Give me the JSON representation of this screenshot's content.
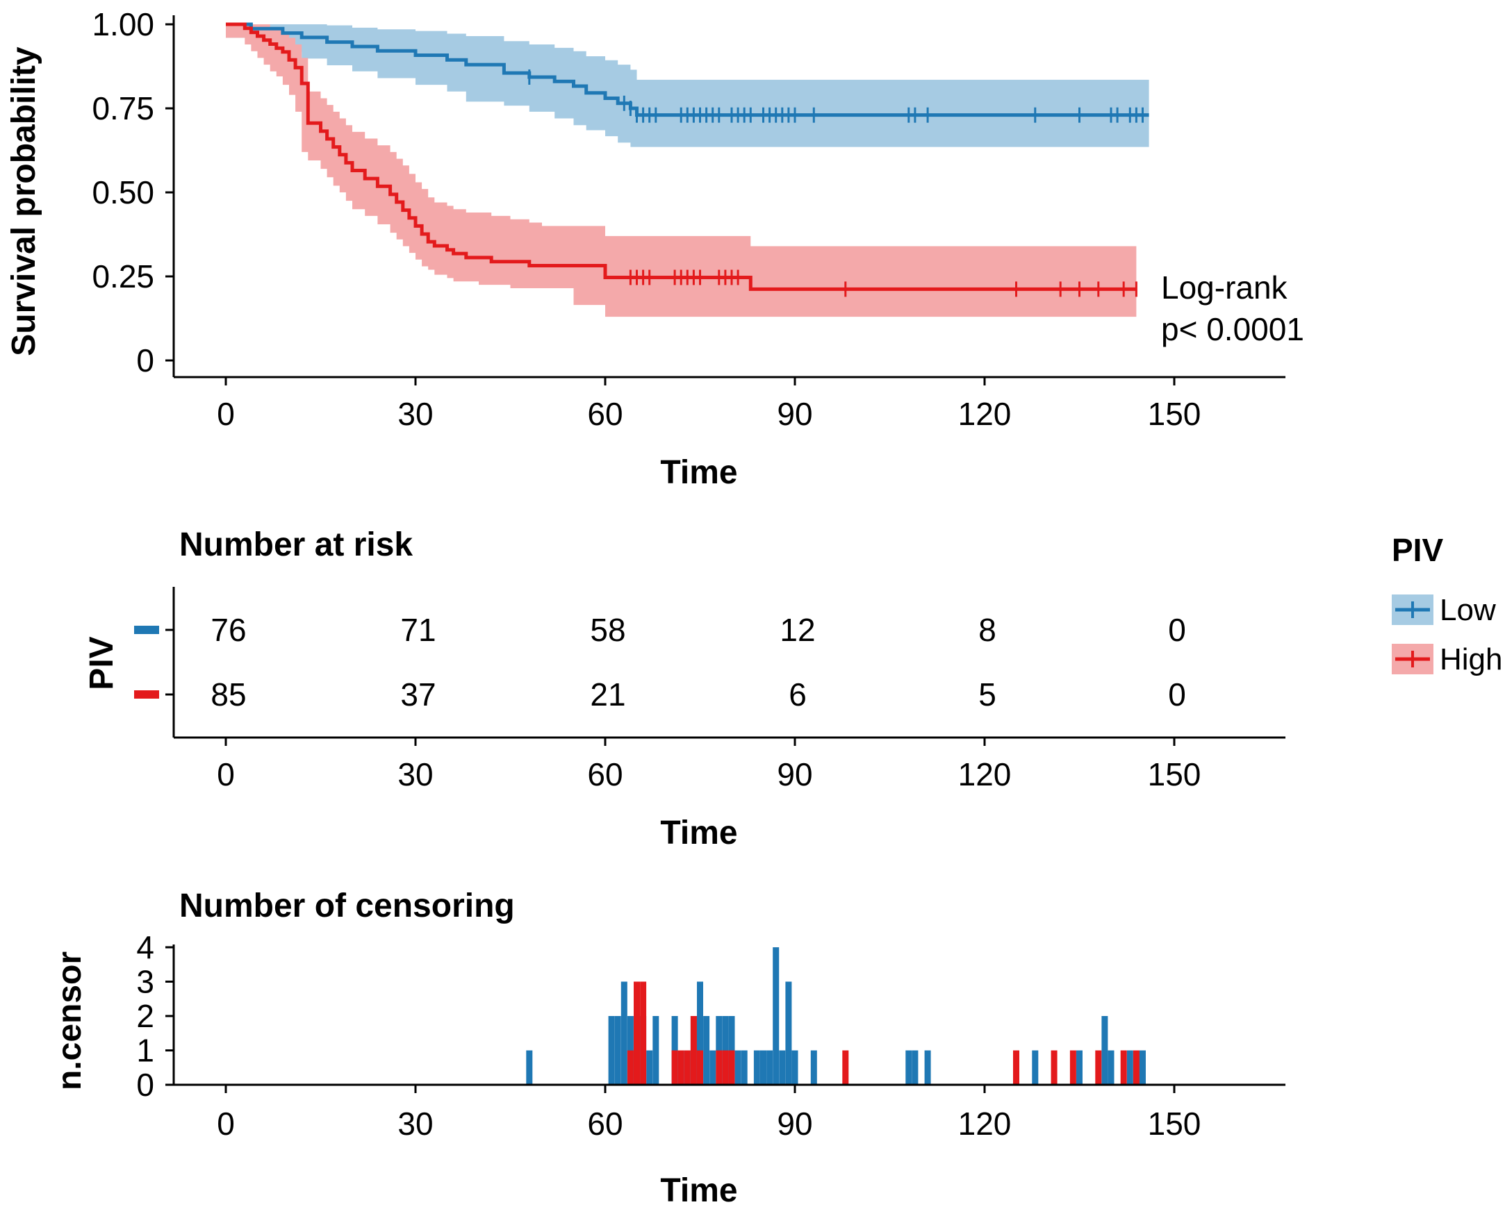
{
  "colors": {
    "low": "#1f78b4",
    "high": "#e31a1c",
    "low_band": "#a6cbe3",
    "high_band": "#f4a9aa"
  },
  "legend": {
    "title": "PIV",
    "items": [
      {
        "label": "Low",
        "color": "#1f78b4"
      },
      {
        "label": "High",
        "color": "#e31a1c"
      }
    ]
  },
  "chart_data": [
    {
      "type": "line",
      "subtype": "kaplan-meier",
      "title": "",
      "xlabel": "Time",
      "ylabel": "Survival probability",
      "xlim": [
        -8,
        167
      ],
      "ylim": [
        -0.05,
        1.05
      ],
      "x_ticks": [
        0,
        30,
        60,
        90,
        120,
        150
      ],
      "x_tick_labels": [
        "0",
        "30",
        "60",
        "90",
        "120",
        "150"
      ],
      "y_ticks": [
        0,
        0.25,
        0.5,
        0.75,
        1.0
      ],
      "y_tick_labels": [
        "0",
        "0.25",
        "0.50",
        "0.75",
        "1.00"
      ],
      "annotation": [
        "Log-rank",
        "p< 0.0001"
      ],
      "series": [
        {
          "name": "Low",
          "color": "#1f78b4",
          "x": [
            0,
            4,
            9,
            12,
            16,
            20,
            24,
            30,
            35,
            38,
            44,
            48,
            52,
            55,
            57,
            60,
            62,
            64,
            65,
            146
          ],
          "y": [
            1.0,
            0.987,
            0.974,
            0.961,
            0.947,
            0.934,
            0.921,
            0.908,
            0.894,
            0.88,
            0.855,
            0.843,
            0.83,
            0.816,
            0.796,
            0.78,
            0.765,
            0.75,
            0.73,
            0.73
          ],
          "upper": [
            1.0,
            1.0,
            1.0,
            1.0,
            0.997,
            0.99,
            0.985,
            0.98,
            0.972,
            0.965,
            0.95,
            0.94,
            0.93,
            0.92,
            0.905,
            0.893,
            0.88,
            0.865,
            0.835,
            0.835
          ],
          "lower": [
            1.0,
            0.96,
            0.938,
            0.918,
            0.898,
            0.878,
            0.86,
            0.84,
            0.82,
            0.8,
            0.77,
            0.758,
            0.74,
            0.72,
            0.7,
            0.685,
            0.667,
            0.648,
            0.635,
            0.635
          ],
          "censor_x": [
            48,
            63,
            64,
            65,
            66,
            67,
            68,
            72,
            73,
            74,
            75,
            76,
            77,
            78,
            80,
            81,
            82,
            83,
            85,
            86,
            87,
            88,
            89,
            90,
            93,
            108,
            109,
            111,
            128,
            135,
            140,
            141,
            143,
            144,
            145
          ]
        },
        {
          "name": "High",
          "color": "#e31a1c",
          "x": [
            0,
            3,
            4,
            5,
            6,
            7,
            8,
            9,
            10,
            11,
            12,
            13,
            15,
            16,
            17,
            18,
            19,
            20,
            22,
            24,
            26,
            27,
            28,
            29,
            30,
            31,
            32,
            33,
            35,
            36,
            38,
            40,
            42,
            45,
            48,
            50,
            55,
            60,
            83,
            144
          ],
          "y": [
            1.0,
            0.988,
            0.976,
            0.965,
            0.953,
            0.941,
            0.929,
            0.918,
            0.894,
            0.871,
            0.824,
            0.706,
            0.682,
            0.659,
            0.635,
            0.612,
            0.588,
            0.565,
            0.541,
            0.518,
            0.494,
            0.471,
            0.447,
            0.424,
            0.4,
            0.376,
            0.353,
            0.341,
            0.329,
            0.318,
            0.306,
            0.306,
            0.294,
            0.294,
            0.282,
            0.282,
            0.282,
            0.247,
            0.212,
            0.212
          ],
          "upper": [
            1.0,
            1.0,
            1.0,
            1.0,
            1.0,
            0.99,
            0.985,
            0.978,
            0.96,
            0.94,
            0.9,
            0.8,
            0.78,
            0.76,
            0.74,
            0.72,
            0.7,
            0.68,
            0.66,
            0.64,
            0.62,
            0.6,
            0.58,
            0.555,
            0.53,
            0.51,
            0.485,
            0.47,
            0.46,
            0.45,
            0.44,
            0.44,
            0.43,
            0.42,
            0.41,
            0.4,
            0.4,
            0.37,
            0.34,
            0.34
          ],
          "lower": [
            1.0,
            0.96,
            0.94,
            0.92,
            0.9,
            0.88,
            0.86,
            0.845,
            0.82,
            0.79,
            0.74,
            0.62,
            0.595,
            0.57,
            0.545,
            0.52,
            0.5,
            0.475,
            0.45,
            0.43,
            0.405,
            0.38,
            0.36,
            0.34,
            0.32,
            0.3,
            0.28,
            0.27,
            0.255,
            0.245,
            0.235,
            0.235,
            0.225,
            0.225,
            0.215,
            0.215,
            0.215,
            0.165,
            0.13,
            0.13
          ]
        }
      ],
      "high_censor_x": [
        64,
        65,
        66,
        67,
        71,
        72,
        73,
        74,
        75,
        78,
        79,
        80,
        81,
        98,
        125,
        132,
        135,
        138,
        142,
        144
      ]
    },
    {
      "type": "table",
      "title": "Number at risk",
      "xlabel": "Time",
      "ylabel": "PIV",
      "x_ticks": [
        0,
        30,
        60,
        90,
        120,
        150
      ],
      "x_tick_labels": [
        "0",
        "30",
        "60",
        "90",
        "120",
        "150"
      ],
      "rows": [
        {
          "name": "Low",
          "color": "#1f78b4",
          "values": [
            "76",
            "71",
            "58",
            "12",
            "8",
            "0"
          ]
        },
        {
          "name": "High",
          "color": "#e31a1c",
          "values": [
            "85",
            "37",
            "21",
            "6",
            "5",
            "0"
          ]
        }
      ]
    },
    {
      "type": "bar",
      "title": "Number of censoring",
      "xlabel": "Time",
      "ylabel": "n.censor",
      "ylim": [
        0,
        4
      ],
      "x_ticks": [
        0,
        30,
        60,
        90,
        120,
        150
      ],
      "x_tick_labels": [
        "0",
        "30",
        "60",
        "90",
        "120",
        "150"
      ],
      "y_ticks": [
        0,
        1,
        2,
        3,
        4
      ],
      "y_tick_labels": [
        "0",
        "1",
        "2",
        "3",
        "4"
      ],
      "series": [
        {
          "name": "Low",
          "color": "#1f78b4",
          "x": [
            48,
            61,
            62,
            63,
            64,
            65,
            66,
            67,
            68,
            71,
            72,
            73,
            74,
            75,
            76,
            77,
            78,
            79,
            80,
            81,
            82,
            84,
            85,
            86,
            87,
            88,
            89,
            90,
            93,
            108,
            109,
            111,
            128,
            135,
            139,
            140,
            143,
            144,
            145
          ],
          "values": [
            1,
            2,
            2,
            3,
            2,
            1,
            2,
            1,
            2,
            2,
            1,
            1,
            2,
            3,
            2,
            1,
            2,
            2,
            2,
            1,
            1,
            1,
            1,
            1,
            4,
            1,
            3,
            1,
            1,
            1,
            1,
            1,
            1,
            1,
            2,
            1,
            1,
            1,
            1
          ]
        },
        {
          "name": "High",
          "color": "#e31a1c",
          "x": [
            64,
            65,
            66,
            71,
            72,
            73,
            74,
            75,
            78,
            79,
            80,
            98,
            125,
            131,
            134,
            138,
            142,
            144
          ],
          "values": [
            1,
            3,
            3,
            1,
            1,
            1,
            2,
            1,
            1,
            1,
            1,
            1,
            1,
            1,
            1,
            1,
            1,
            1
          ]
        }
      ]
    }
  ]
}
